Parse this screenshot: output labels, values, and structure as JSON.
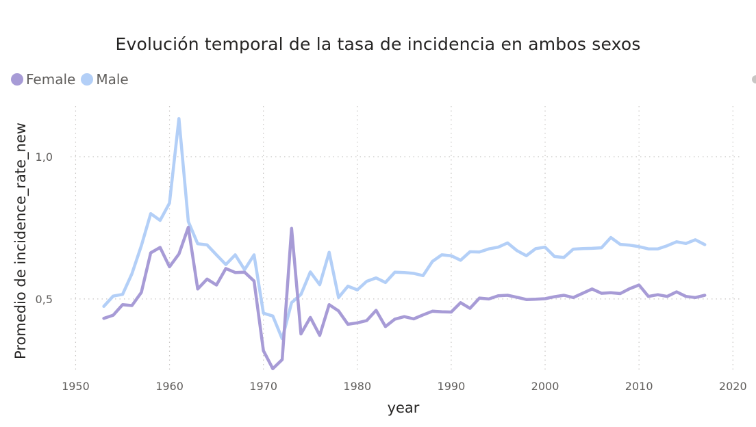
{
  "chart_data": {
    "type": "line",
    "title": "Evolución temporal de la tasa de incidencia en ambos sexos",
    "xlabel": "year",
    "ylabel": "Promedio de incidence_rate_new",
    "xlim": [
      1948,
      2021
    ],
    "ylim": [
      0.24,
      1.19
    ],
    "x_ticks": [
      {
        "value": 1950,
        "label": "1950"
      },
      {
        "value": 1960,
        "label": "1960"
      },
      {
        "value": 1970,
        "label": "1970"
      },
      {
        "value": 1980,
        "label": "1980"
      },
      {
        "value": 1990,
        "label": "1990"
      },
      {
        "value": 2000,
        "label": "2000"
      },
      {
        "value": 2010,
        "label": "2010"
      },
      {
        "value": 2020,
        "label": "2020"
      }
    ],
    "y_ticks": [
      {
        "value": 0.5,
        "label": "0,5"
      },
      {
        "value": 1.0,
        "label": "1,0"
      }
    ],
    "grid": true,
    "legend": "top-left",
    "x": [
      1953,
      1954,
      1955,
      1956,
      1957,
      1958,
      1959,
      1960,
      1961,
      1962,
      1963,
      1964,
      1965,
      1966,
      1967,
      1968,
      1969,
      1970,
      1971,
      1972,
      1973,
      1974,
      1975,
      1976,
      1977,
      1978,
      1979,
      1980,
      1981,
      1982,
      1983,
      1984,
      1985,
      1986,
      1987,
      1988,
      1989,
      1990,
      1991,
      1992,
      1993,
      1994,
      1995,
      1996,
      1997,
      1998,
      1999,
      2000,
      2001,
      2002,
      2003,
      2004,
      2005,
      2006,
      2007,
      2008,
      2009,
      2010,
      2011,
      2012,
      2013,
      2014,
      2015,
      2016,
      2017
    ],
    "series": [
      {
        "name": "Female",
        "color": "#a79bd6",
        "values": [
          0.432,
          0.443,
          0.48,
          0.477,
          0.523,
          0.662,
          0.681,
          0.613,
          0.658,
          0.752,
          0.535,
          0.57,
          0.549,
          0.607,
          0.593,
          0.594,
          0.563,
          0.318,
          0.255,
          0.287,
          0.748,
          0.377,
          0.435,
          0.372,
          0.48,
          0.458,
          0.411,
          0.416,
          0.424,
          0.46,
          0.403,
          0.429,
          0.438,
          0.43,
          0.444,
          0.457,
          0.455,
          0.454,
          0.487,
          0.467,
          0.503,
          0.5,
          0.511,
          0.513,
          0.506,
          0.498,
          0.499,
          0.501,
          0.508,
          0.513,
          0.505,
          0.52,
          0.535,
          0.52,
          0.522,
          0.519,
          0.536,
          0.549,
          0.509,
          0.515,
          0.509,
          0.525,
          0.509,
          0.505,
          0.513
        ]
      },
      {
        "name": "Male",
        "color": "#b3cff7",
        "values": [
          0.474,
          0.51,
          0.516,
          0.589,
          0.687,
          0.8,
          0.776,
          0.837,
          1.134,
          0.772,
          0.694,
          0.69,
          0.655,
          0.621,
          0.655,
          0.603,
          0.655,
          0.45,
          0.44,
          0.36,
          0.487,
          0.516,
          0.595,
          0.55,
          0.664,
          0.505,
          0.545,
          0.532,
          0.562,
          0.574,
          0.558,
          0.594,
          0.593,
          0.59,
          0.582,
          0.632,
          0.655,
          0.652,
          0.636,
          0.666,
          0.665,
          0.676,
          0.682,
          0.697,
          0.67,
          0.652,
          0.677,
          0.682,
          0.649,
          0.646,
          0.675,
          0.677,
          0.678,
          0.68,
          0.716,
          0.692,
          0.689,
          0.684,
          0.676,
          0.676,
          0.687,
          0.701,
          0.695,
          0.708,
          0.691
        ]
      }
    ]
  }
}
